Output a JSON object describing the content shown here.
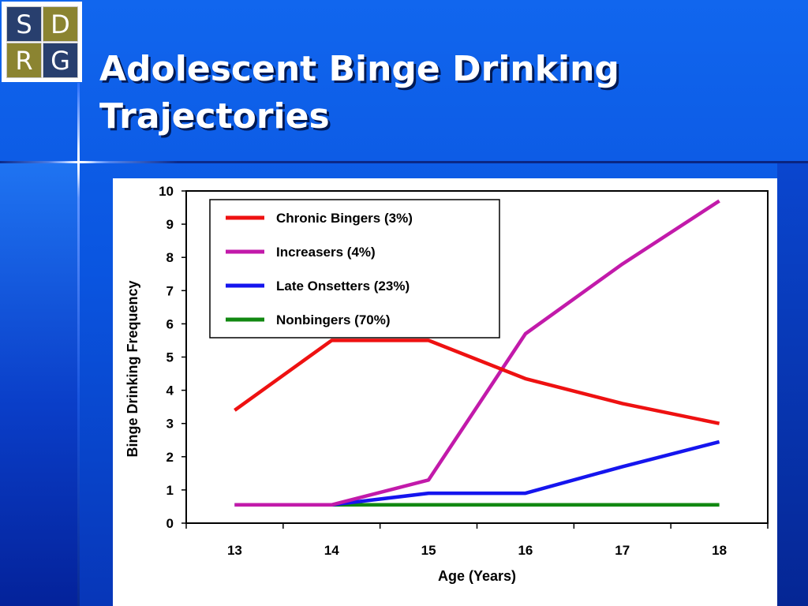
{
  "logo": {
    "letters": [
      "S",
      "D",
      "R",
      "G"
    ]
  },
  "slide": {
    "title_line1": "Adolescent Binge Drinking",
    "title_line2": "Trajectories"
  },
  "chart_data": {
    "type": "line",
    "title": "",
    "xlabel": "Age (Years)",
    "ylabel": "Binge Drinking Frequency",
    "x": [
      13,
      14,
      15,
      16,
      17,
      18
    ],
    "ylim": [
      0,
      10
    ],
    "yticks": [
      0,
      1,
      2,
      3,
      4,
      5,
      6,
      7,
      8,
      9,
      10
    ],
    "grid": false,
    "legend": "top-left",
    "series": [
      {
        "name": "Chronic Bingers (3%)",
        "color": "#ee1111",
        "values": [
          3.4,
          5.5,
          5.5,
          4.35,
          3.6,
          3.0
        ]
      },
      {
        "name": "Increasers (4%)",
        "color": "#c21aaa",
        "values": [
          0.55,
          0.55,
          1.3,
          5.7,
          7.8,
          9.7
        ]
      },
      {
        "name": "Late Onsetters (23%)",
        "color": "#1515ee",
        "values": [
          0.55,
          0.55,
          0.9,
          0.9,
          1.7,
          2.45
        ]
      },
      {
        "name": "Nonbingers (70%)",
        "color": "#118811",
        "values": [
          0.55,
          0.55,
          0.55,
          0.55,
          0.55,
          0.55
        ]
      }
    ]
  }
}
